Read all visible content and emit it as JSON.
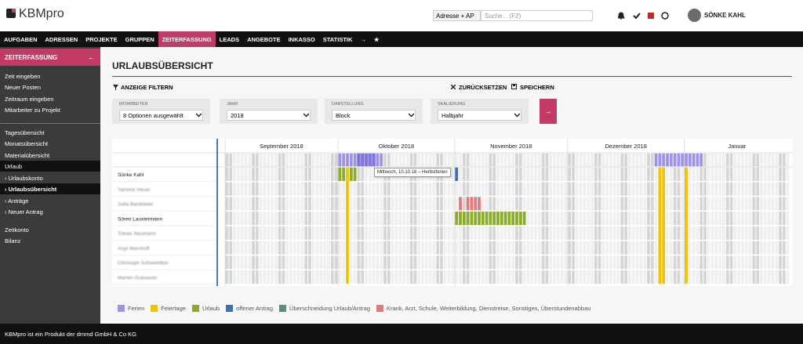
{
  "header": {
    "logo": "KBMpro",
    "search_scope": "Adresse + AP",
    "search_placeholder": "Suche... (F2)",
    "user": "SÖNKE KAHL"
  },
  "nav": [
    "AUFGABEN",
    "ADRESSEN",
    "PROJEKTE",
    "GRUPPEN",
    "ZEITERFASSUNG",
    "LEADS",
    "ANGEBOTE",
    "INKASSO",
    "STATISTIK",
    "→",
    "★"
  ],
  "sidebar": {
    "title": "ZEITERFASSUNG",
    "back": "←",
    "groups": [
      [
        "Zeit eingeben",
        "Neuer Posten",
        "Zeitraum eingeben",
        "Mitarbeiter zu Projekt"
      ],
      [
        "Tagesübersicht",
        "Monatsübersicht",
        "Materialübersicht",
        "Urlaub",
        "› Urlaubskonto",
        "› Urlaubsübersicht",
        "› Anträge",
        "› Neuer Antrag"
      ],
      [
        "Zeitkonto",
        "Bilanz"
      ]
    ]
  },
  "page": {
    "title": "URLAUBSÜBERSICHT",
    "filter": "ANZEIGE FILTERN",
    "reset": "ZURÜCKSETZEN",
    "save": "SPEICHERN",
    "go": "→",
    "filters": [
      {
        "label": "MITARBEITER",
        "value": "8 Optionen ausgewählt"
      },
      {
        "label": "JAHR",
        "value": "2018"
      },
      {
        "label": "DARSTELLUNG",
        "value": "Block"
      },
      {
        "label": "SKALIERUNG",
        "value": "Halbjahr"
      }
    ]
  },
  "calendar": {
    "months": [
      "September 2018",
      "Oktober 2018",
      "November 2018",
      "Dezember 2018",
      "Januar"
    ],
    "employees": [
      "Sönke Kahl",
      "Yannick Heuel",
      "Jutta Bardeleier",
      "Sören Lauxtermann",
      "Tobias Neumann",
      "Anja Marnhoff",
      "Christoph Schweintker",
      "Marlen Gubowski"
    ],
    "tooltip": "Mittwoch, 10.10.18 – Herbstferien"
  },
  "legend": [
    {
      "label": "Ferien",
      "color": "#9d91ea"
    },
    {
      "label": "Feiertage",
      "color": "#f2c300"
    },
    {
      "label": "Urlaub",
      "color": "#8aab2b"
    },
    {
      "label": "offener Antrag",
      "color": "#3d6fb3"
    },
    {
      "label": "Überschneidung Urlaub/Antrag",
      "color": "#5e8b7a"
    },
    {
      "label": "Krank, Arzt, Schule, Weiterbildung, Dienstreise, Sonstiges, Überstundenabbau",
      "color": "#e07b7b"
    }
  ],
  "footer": "KBMpro ist ein Produkt der dmmd GmbH & Co KG"
}
